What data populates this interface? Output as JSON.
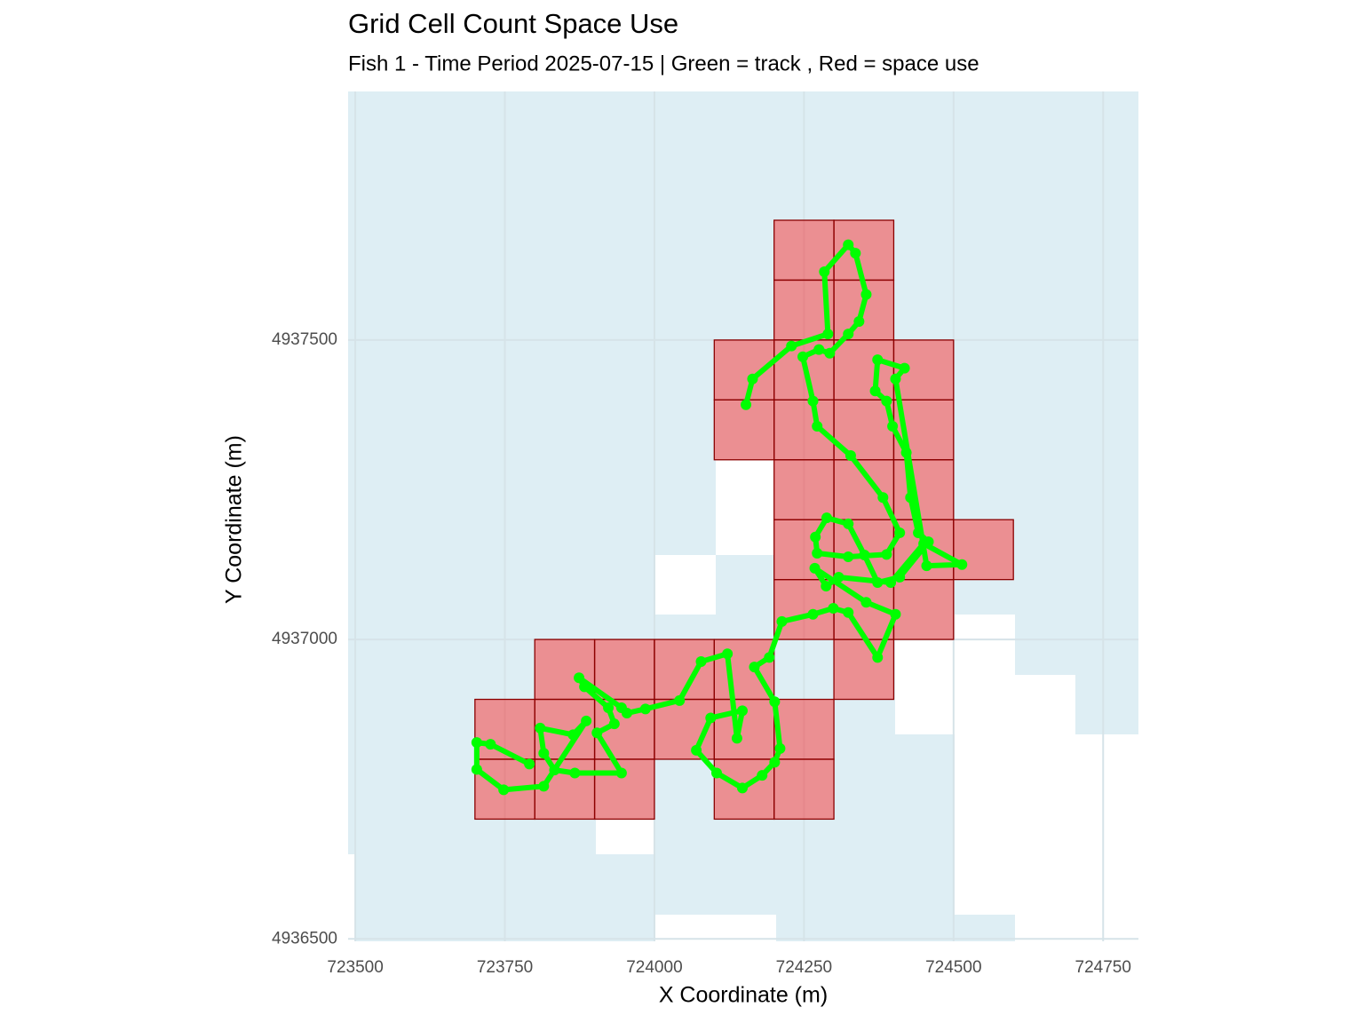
{
  "chart_data": {
    "type": "map",
    "title": "Grid Cell Count Space Use",
    "subtitle": "Fish 1 - Time Period 2025-07-15 | Green = track , Red = space use",
    "x_label": "X Coordinate (m)",
    "y_label": "Y Coordinate (m)",
    "xlim": [
      723488,
      724809
    ],
    "ylim": [
      4936496,
      4937915
    ],
    "xticks": [
      723500,
      723750,
      724000,
      724250,
      724500,
      724750
    ],
    "yticks": [
      4936500,
      4937000,
      4937500
    ],
    "grid": true,
    "cells": {
      "size": 100,
      "fill": "#ff0000",
      "alpha": 0.4,
      "stroke": "#8b0000",
      "x": [
        724200,
        724300,
        724200,
        724300,
        724100,
        724200,
        724300,
        724400,
        724100,
        724200,
        724300,
        724400,
        724200,
        724300,
        724400,
        724200,
        724300,
        724400,
        724500,
        724200,
        724300,
        724400,
        723800,
        723900,
        724000,
        724100,
        724300,
        723700,
        723800,
        723900,
        724000,
        724100,
        724200,
        723700,
        723800,
        723900,
        724100,
        724200
      ],
      "y": [
        4937600,
        4937600,
        4937500,
        4937500,
        4937400,
        4937400,
        4937400,
        4937400,
        4937300,
        4937300,
        4937300,
        4937300,
        4937200,
        4937200,
        4937200,
        4937100,
        4937100,
        4937100,
        4937100,
        4937000,
        4937000,
        4937000,
        4936900,
        4936900,
        4936900,
        4936900,
        4936900,
        4936800,
        4936800,
        4936800,
        4936800,
        4936800,
        4936800,
        4936700,
        4936700,
        4936700,
        4936700,
        4936700
      ]
    },
    "track": {
      "color": "#00ff00",
      "x": [
        724153,
        724164,
        724229,
        724290,
        724284,
        724324,
        724336,
        724354,
        724342,
        724324,
        724293,
        724275,
        724248,
        724265,
        724272,
        724328,
        724382,
        724410,
        724388,
        724324,
        724272,
        724269,
        724288,
        724324,
        724351,
        724373,
        724410,
        724458,
        724441,
        724428,
        724421,
        724398,
        724388,
        724369,
        724373,
        724418,
        724403,
        724455,
        724514,
        724450,
        724395,
        724308,
        724287,
        724268,
        724354,
        724403,
        724373,
        724324,
        724299,
        724265,
        724213,
        724192,
        724167,
        724201,
        724210,
        724201,
        724180,
        724147,
        724104,
        724070,
        724094,
        724147,
        724138,
        724122,
        724078,
        724042,
        723985,
        723954,
        723945,
        723874,
        723883,
        723923,
        723933,
        723904,
        723945,
        723867,
        723833,
        723815,
        723809,
        723864,
        723886,
        723815,
        723748,
        723703,
        723703,
        723726,
        723791
      ],
      "y": [
        4937392,
        4937435,
        4937490,
        4937510,
        4937614,
        4937659,
        4937645,
        4937576,
        4937531,
        4937510,
        4937478,
        4937484,
        4937472,
        4937398,
        4937356,
        4937307,
        4937237,
        4937178,
        4937142,
        4937138,
        4937144,
        4937171,
        4937203,
        4937193,
        4937141,
        4937095,
        4937104,
        4937163,
        4937178,
        4937237,
        4937312,
        4937356,
        4937398,
        4937415,
        4937467,
        4937453,
        4937435,
        4937123,
        4937125,
        4937160,
        4937095,
        4937104,
        4937089,
        4937119,
        4937062,
        4937042,
        4936970,
        4937045,
        4937052,
        4937042,
        4937030,
        4936970,
        4936954,
        4936896,
        4936818,
        4936795,
        4936773,
        4936752,
        4936777,
        4936815,
        4936869,
        4936881,
        4936835,
        4936976,
        4936963,
        4936898,
        4936884,
        4936877,
        4936886,
        4936936,
        4936921,
        4936886,
        4936859,
        4936844,
        4936777,
        4936777,
        4936782,
        4936810,
        4936852,
        4936841,
        4936864,
        4936755,
        4936749,
        4936783,
        4936828,
        4936825,
        4936792
      ]
    }
  }
}
